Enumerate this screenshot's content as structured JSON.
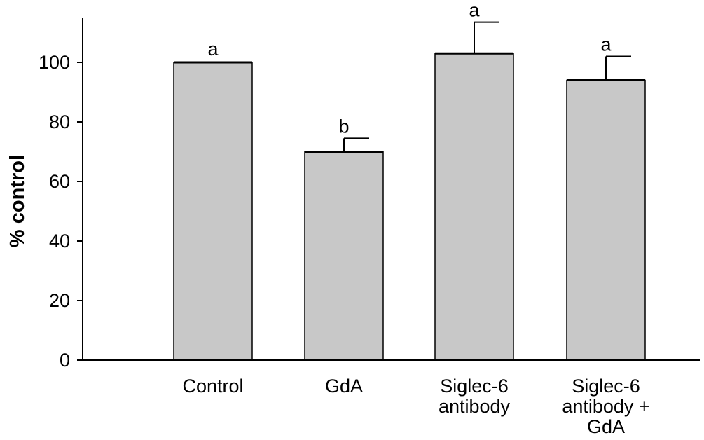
{
  "chart_data": {
    "type": "bar",
    "ylabel": "% control",
    "xlabel": "",
    "ylim": [
      0,
      115
    ],
    "yticks": [
      0,
      20,
      40,
      60,
      80,
      100
    ],
    "grid": false,
    "categories": [
      [
        "Control"
      ],
      [
        "GdA"
      ],
      [
        "Siglec-6",
        "antibody"
      ],
      [
        "Siglec-6",
        "antibody +",
        "GdA"
      ]
    ],
    "values": [
      100,
      70,
      103,
      94
    ],
    "error": [
      0,
      4.5,
      10.5,
      8
    ],
    "significance_labels": [
      "a",
      "b",
      "a",
      "a"
    ],
    "colors": {
      "bar_fill": "#c8c8c8",
      "bar_stroke": "#000000"
    }
  }
}
